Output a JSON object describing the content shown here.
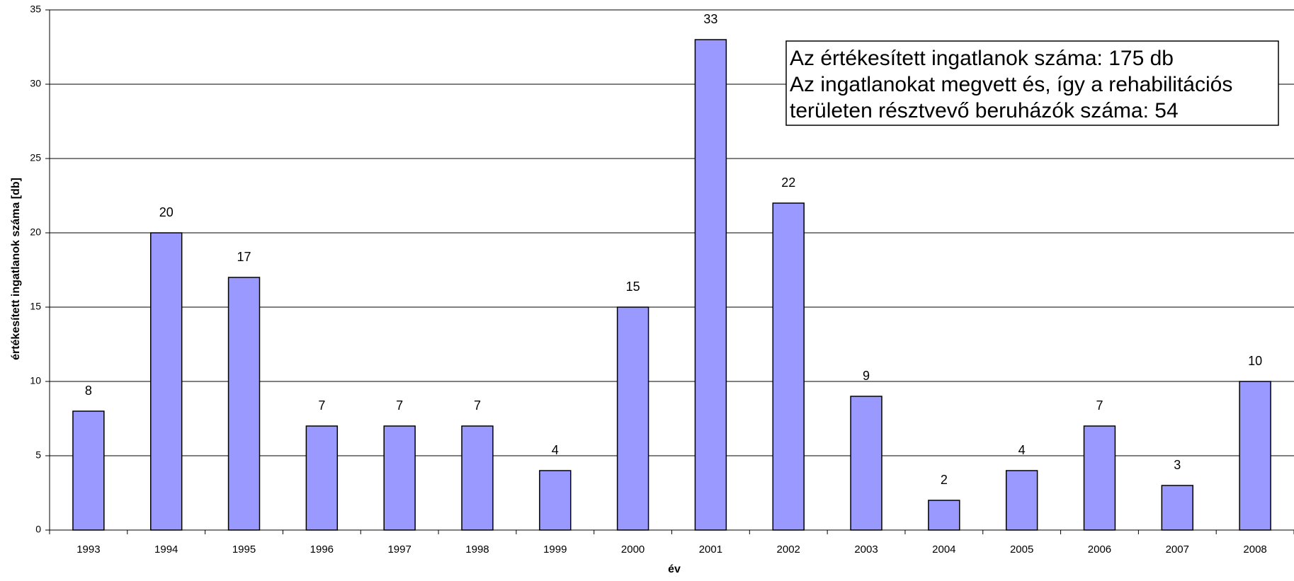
{
  "chart_data": {
    "type": "bar",
    "categories": [
      "1993",
      "1994",
      "1995",
      "1996",
      "1997",
      "1998",
      "1999",
      "2000",
      "2001",
      "2002",
      "2003",
      "2004",
      "2005",
      "2006",
      "2007",
      "2008"
    ],
    "values": [
      8,
      20,
      17,
      7,
      7,
      7,
      4,
      15,
      33,
      22,
      9,
      2,
      4,
      7,
      3,
      10
    ],
    "color": "#9999ff",
    "ylim": [
      0,
      35
    ],
    "yticks": [
      0,
      5,
      10,
      15,
      20,
      25,
      30,
      35
    ],
    "grid": true,
    "ylabel": "értékesített ingatlanok száma [db]",
    "xlabel": "év",
    "annotation": [
      "Az értékesített ingatlanok száma: 175 db",
      "Az ingatlanokat megvett és, így a rehabilitációs",
      "területen résztvevő beruházók száma: 54"
    ]
  }
}
